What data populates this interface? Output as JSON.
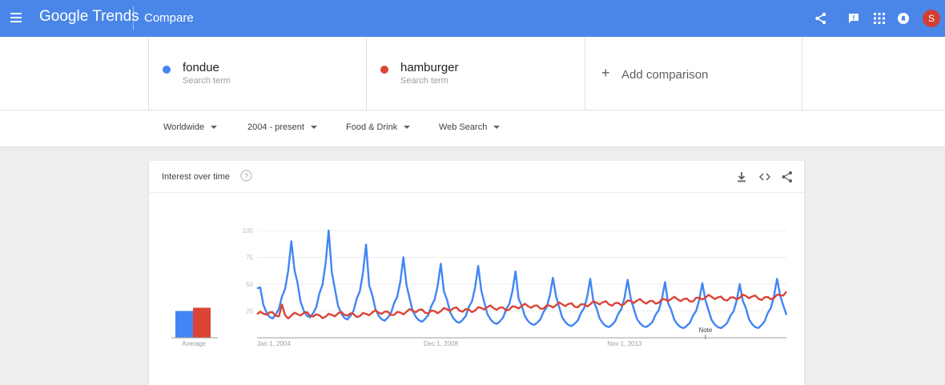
{
  "appbar": {
    "logo": "Google Trends",
    "section": "Compare",
    "avatar_letter": "S",
    "icons": [
      "menu-icon",
      "share-icon",
      "feedback-icon",
      "apps-icon",
      "notifications-icon"
    ]
  },
  "terms": [
    {
      "name": "fondue",
      "sub": "Search term",
      "color": "#4285f4"
    },
    {
      "name": "hamburger",
      "sub": "Search term",
      "color": "#db4437"
    }
  ],
  "add_comparison": {
    "icon": "+",
    "label": "Add comparison"
  },
  "filters": [
    {
      "label": "Worldwide"
    },
    {
      "label": "2004 - present"
    },
    {
      "label": "Food & Drink"
    },
    {
      "label": "Web Search"
    }
  ],
  "card": {
    "title": "Interest over time",
    "tools": [
      "download-icon",
      "embed-icon",
      "share-icon"
    ]
  },
  "chart_data": {
    "type": "line",
    "title": "Interest over time",
    "x_ticks": [
      "Jan 1, 2004",
      "Dec 1, 2008",
      "Nov 1, 2013"
    ],
    "y_ticks": [
      25,
      50,
      75,
      100
    ],
    "ylim": [
      0,
      100
    ],
    "xlim": [
      "Jan 2004",
      "Mar 2018"
    ],
    "grid": true,
    "average_label": "Average",
    "note_label": "Note",
    "note_x": "Jan 2016",
    "averages": [
      {
        "name": "fondue",
        "value": 25
      },
      {
        "name": "hamburger",
        "value": 28
      }
    ],
    "series": [
      {
        "name": "fondue",
        "color": "#4285f4",
        "peaks": [
          {
            "x": "Dec 2004",
            "y": 90
          },
          {
            "x": "Dec 2005",
            "y": 100
          },
          {
            "x": "Dec 2006",
            "y": 87
          },
          {
            "x": "Dec 2007",
            "y": 75
          },
          {
            "x": "Dec 2008",
            "y": 69
          },
          {
            "x": "Dec 2009",
            "y": 67
          },
          {
            "x": "Dec 2010",
            "y": 62
          },
          {
            "x": "Dec 2011",
            "y": 56
          },
          {
            "x": "Dec 2012",
            "y": 55
          },
          {
            "x": "Dec 2013",
            "y": 54
          },
          {
            "x": "Dec 2014",
            "y": 52
          },
          {
            "x": "Dec 2015",
            "y": 51
          },
          {
            "x": "Dec 2016",
            "y": 50
          },
          {
            "x": "Dec 2017",
            "y": 55
          }
        ],
        "troughs": [
          {
            "x": "Jun 2004",
            "y": 18
          },
          {
            "x": "Jun 2005",
            "y": 19
          },
          {
            "x": "Jun 2006",
            "y": 17
          },
          {
            "x": "Jun 2007",
            "y": 16
          },
          {
            "x": "Jun 2008",
            "y": 15
          },
          {
            "x": "Jun 2009",
            "y": 14
          },
          {
            "x": "Jun 2010",
            "y": 13
          },
          {
            "x": "Jun 2011",
            "y": 12
          },
          {
            "x": "Jun 2012",
            "y": 11
          },
          {
            "x": "Jun 2013",
            "y": 10
          },
          {
            "x": "Jun 2014",
            "y": 10
          },
          {
            "x": "Jun 2015",
            "y": 9
          },
          {
            "x": "Jun 2016",
            "y": 9
          },
          {
            "x": "Jun 2017",
            "y": 9
          },
          {
            "x": "Mar 2018",
            "y": 14
          }
        ]
      },
      {
        "name": "hamburger",
        "color": "#db4437",
        "trend": [
          {
            "x": "Jan 2004",
            "y": 22
          },
          {
            "x": "Jan 2006",
            "y": 21
          },
          {
            "x": "Jan 2008",
            "y": 24
          },
          {
            "x": "Jan 2010",
            "y": 27
          },
          {
            "x": "Jan 2012",
            "y": 30
          },
          {
            "x": "Jan 2014",
            "y": 33
          },
          {
            "x": "Jan 2016",
            "y": 37
          },
          {
            "x": "Jan 2018",
            "y": 38
          },
          {
            "x": "Mar 2018",
            "y": 42
          }
        ]
      }
    ]
  }
}
